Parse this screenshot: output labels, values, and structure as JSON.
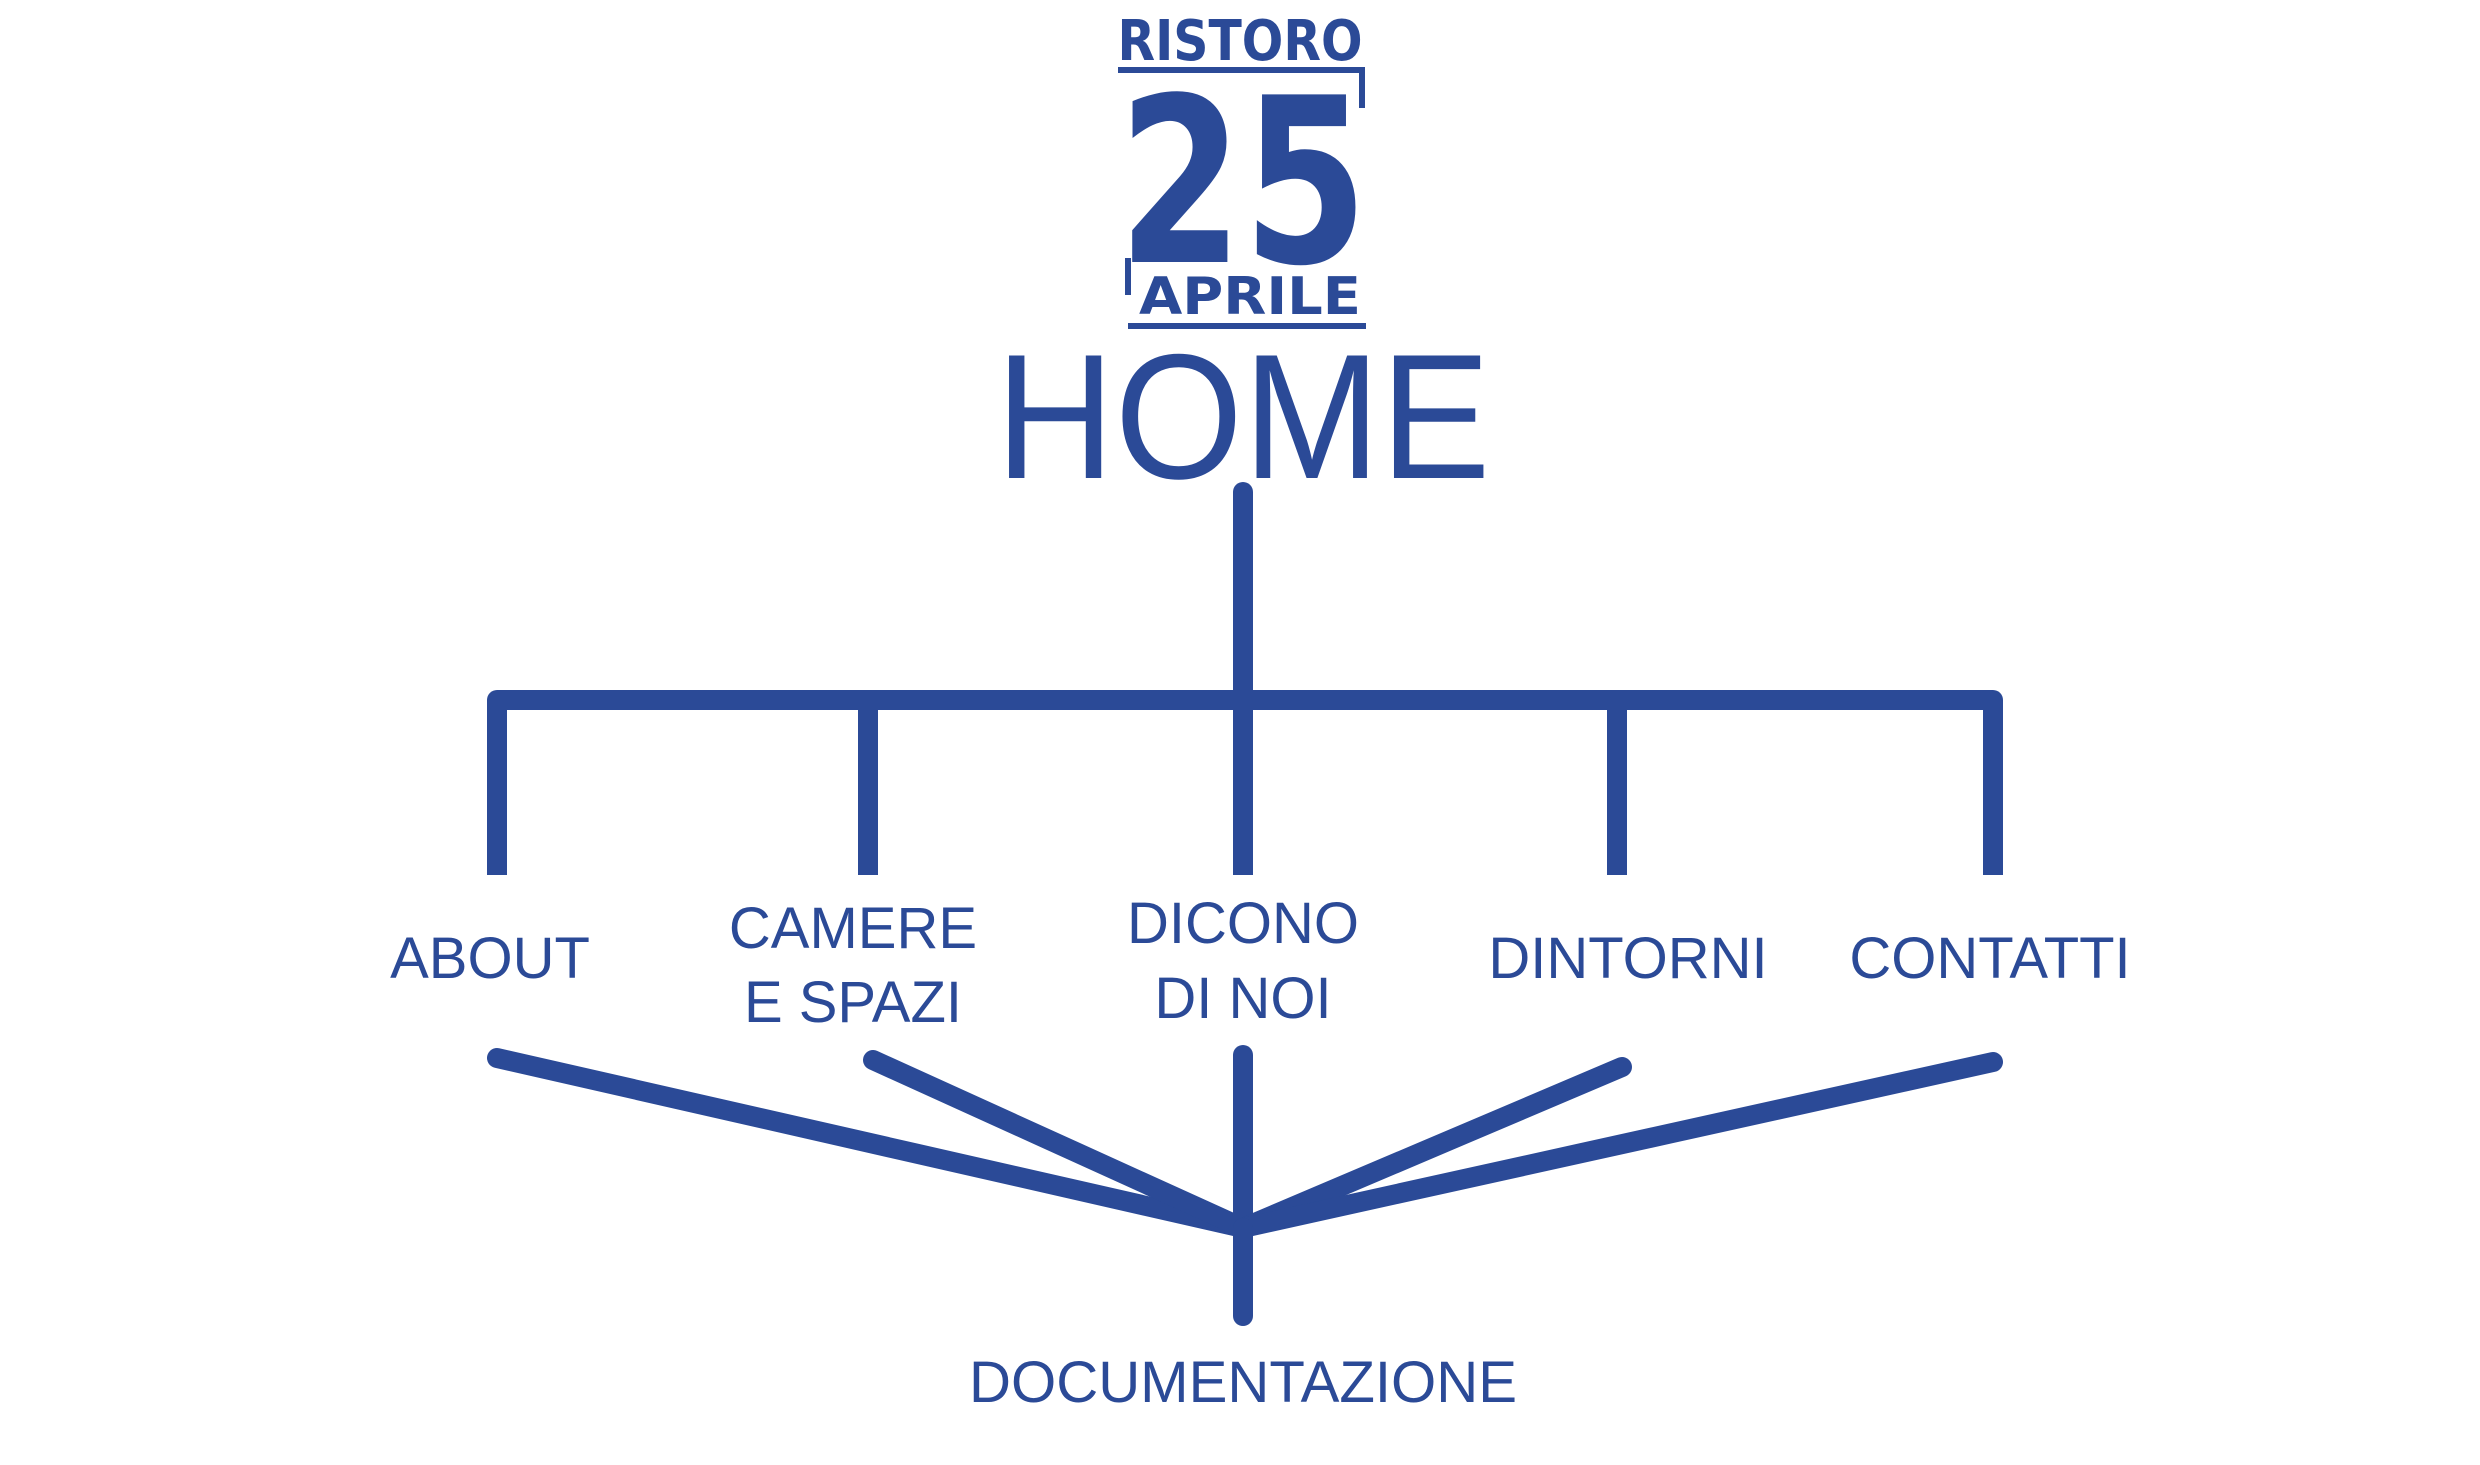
{
  "logo": {
    "line1": "RISTORO",
    "line2": "25",
    "line3": "APRILE"
  },
  "root": {
    "label": "HOME"
  },
  "pages": [
    {
      "id": "about",
      "lines": [
        "ABOUT"
      ]
    },
    {
      "id": "camere-spazi",
      "lines": [
        "CAMERE",
        "E SPAZI"
      ]
    },
    {
      "id": "dicono-di-noi",
      "lines": [
        "DICONO",
        "DI NOI"
      ]
    },
    {
      "id": "dintorni",
      "lines": [
        "DINTORNI"
      ]
    },
    {
      "id": "contatti",
      "lines": [
        "CONTATTI"
      ]
    }
  ],
  "footer_page": {
    "label": "DOCUMENTAZIONE"
  },
  "colors": {
    "primary": "#2b4a97"
  }
}
